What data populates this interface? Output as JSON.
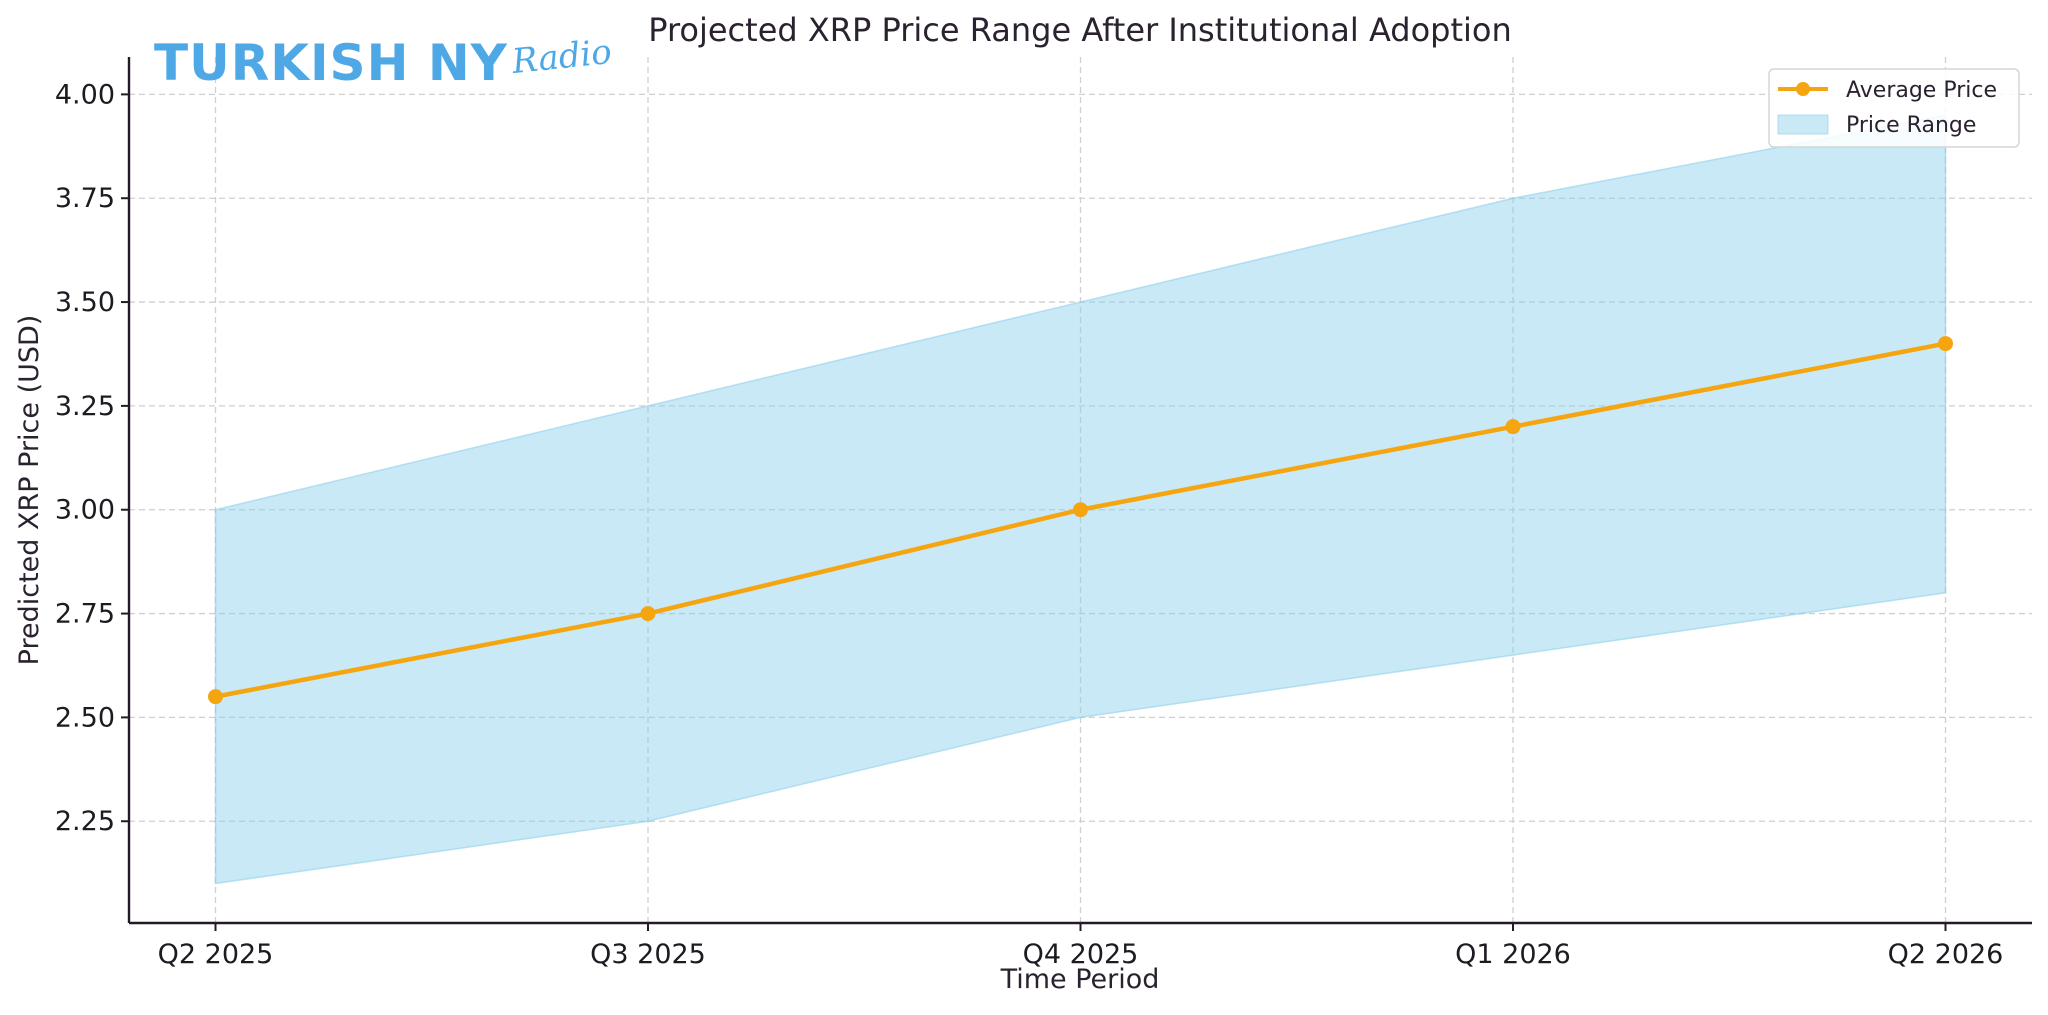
{
  "watermark": {
    "main": "TURKISH NY",
    "script": "Radio",
    "color": "#4fa8e6"
  },
  "chart_data": {
    "type": "line",
    "title": "Projected XRP Price Range After Institutional Adoption",
    "xlabel": "Time Period",
    "ylabel": "Predicted XRP Price (USD)",
    "categories": [
      "Q2 2025",
      "Q3 2025",
      "Q4 2025",
      "Q1 2026",
      "Q2 2026"
    ],
    "series": [
      {
        "name": "Average Price",
        "kind": "line-with-markers",
        "color": "#f5a50f",
        "values": [
          2.55,
          2.75,
          3.0,
          3.2,
          3.4
        ]
      },
      {
        "name": "Price Range",
        "kind": "band",
        "color": "#87ceeb",
        "low": [
          2.1,
          2.25,
          2.5,
          2.65,
          2.8
        ],
        "high": [
          3.0,
          3.25,
          3.5,
          3.75,
          3.95
        ]
      }
    ],
    "yticks": [
      "2.25",
      "2.50",
      "2.75",
      "3.00",
      "3.25",
      "3.50",
      "3.75",
      "4.00"
    ],
    "ytick_values": [
      2.25,
      2.5,
      2.75,
      3.0,
      3.25,
      3.5,
      3.75,
      4.0
    ],
    "ylim": [
      2.005,
      4.09
    ],
    "xlim_index": [
      -0.2,
      4.2
    ],
    "grid": true,
    "legend": {
      "placement": "top-right",
      "entries": [
        "Average Price",
        "Price Range"
      ]
    }
  }
}
